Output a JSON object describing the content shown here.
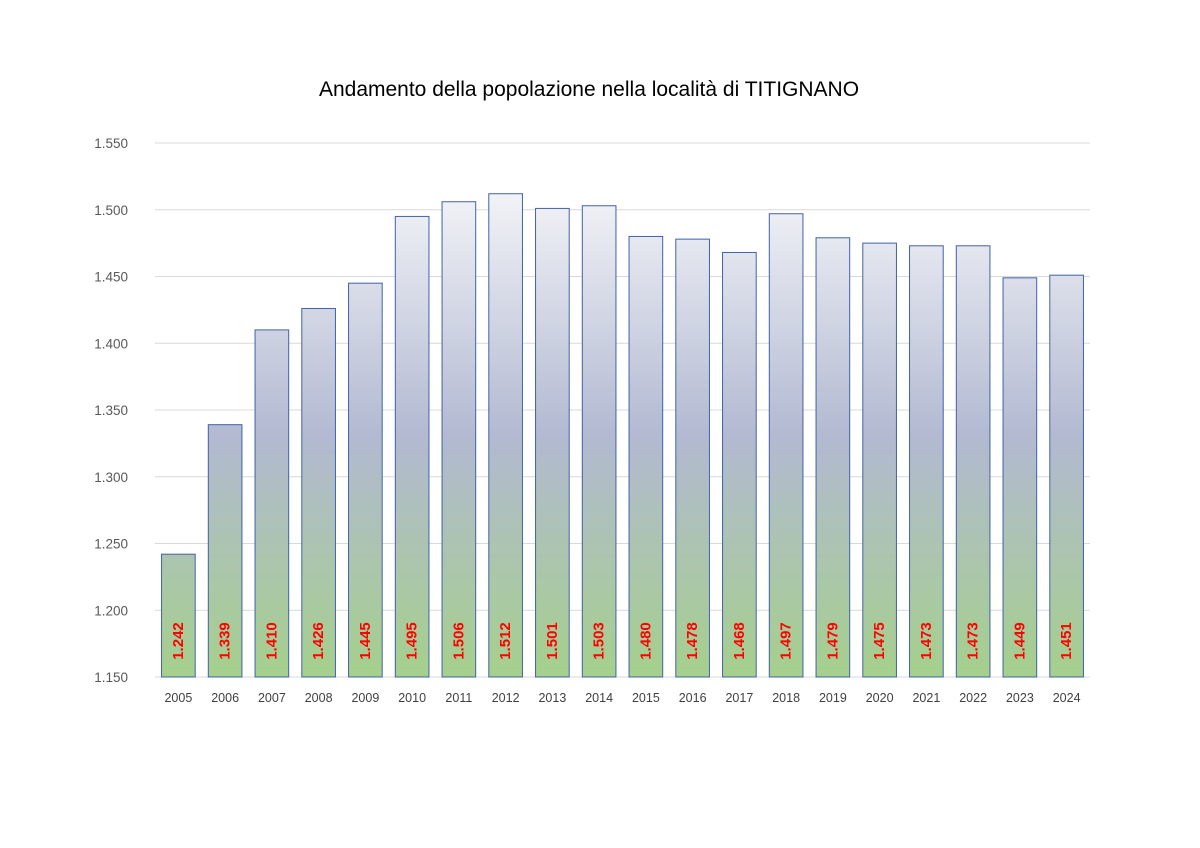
{
  "chart_data": {
    "type": "bar",
    "title": "Andamento della popolazione nella località di TITIGNANO",
    "xlabel": "",
    "ylabel": "",
    "categories": [
      "2005",
      "2006",
      "2007",
      "2008",
      "2009",
      "2010",
      "2011",
      "2012",
      "2013",
      "2014",
      "2015",
      "2016",
      "2017",
      "2018",
      "2019",
      "2020",
      "2021",
      "2022",
      "2023",
      "2024"
    ],
    "values": [
      1242,
      1339,
      1410,
      1426,
      1445,
      1495,
      1506,
      1512,
      1501,
      1503,
      1480,
      1478,
      1468,
      1497,
      1479,
      1475,
      1473,
      1473,
      1449,
      1451
    ],
    "data_labels": [
      "1.242",
      "1.339",
      "1.410",
      "1.426",
      "1.445",
      "1.495",
      "1.506",
      "1.512",
      "1.501",
      "1.503",
      "1.480",
      "1.478",
      "1.468",
      "1.497",
      "1.479",
      "1.475",
      "1.473",
      "1.473",
      "1.449",
      "1.451"
    ],
    "ylim": [
      1150,
      1550
    ],
    "yticks": [
      1150,
      1200,
      1250,
      1300,
      1350,
      1400,
      1450,
      1500,
      1550
    ],
    "ytick_labels": [
      "1.150",
      "1.200",
      "1.250",
      "1.300",
      "1.350",
      "1.400",
      "1.450",
      "1.500",
      "1.550"
    ],
    "grid": true,
    "legend": "none",
    "colors": {
      "bar_border": "#3f62a8",
      "gradient_top": "#ffffff",
      "gradient_mid": "#b2b9d1",
      "gradient_bottom": "#a5d08c",
      "data_label": "#ff0000",
      "grid": "#d9d9d9"
    }
  }
}
